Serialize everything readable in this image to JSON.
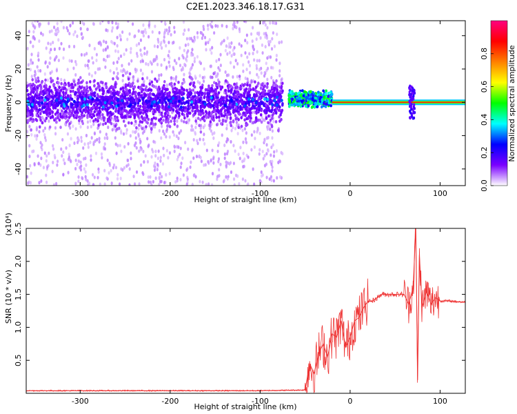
{
  "title": "C2E1.2023.346.18.17.G31",
  "chart_data": [
    {
      "type": "heatmap",
      "xlabel": "Height of straight line (km)",
      "ylabel": "Frequency (Hz)",
      "xlim": [
        -360,
        128
      ],
      "ylim": [
        -50,
        49
      ],
      "xticks": [
        -300,
        -200,
        -100,
        0,
        100
      ],
      "yticks": [
        -40,
        -20,
        0,
        20,
        40
      ],
      "grid": false,
      "colorbar": {
        "label": "Normalized spectral amplitude",
        "range": [
          0,
          1
        ],
        "ticks": [
          0.0,
          0.2,
          0.4,
          0.6,
          0.8
        ],
        "colormap": [
          "#ffffff",
          "#7a00ff",
          "#0000ff",
          "#00ffff",
          "#00ff00",
          "#ffff00",
          "#ff8000",
          "#ff0000",
          "#ff0080"
        ]
      },
      "bands": [
        {
          "x_start": -360,
          "x_end": -75,
          "center_hz": 0,
          "half_width_hz": 10,
          "amplitude": 0.1
        },
        {
          "x_start": -68,
          "x_end": -20,
          "center_hz": 2,
          "half_width_hz": 4,
          "amplitude": 0.4
        },
        {
          "x_start": -20,
          "x_end": 128,
          "center_hz": 0,
          "half_width_hz": 1.2,
          "amplitude": 0.85
        }
      ]
    },
    {
      "type": "line",
      "xlabel": "Height of straight line (km)",
      "ylabel": "SNR (10 * v/v)",
      "y_multiplier": "(x10⁴)",
      "xlim": [
        -360,
        128
      ],
      "ylim": [
        0,
        2.5
      ],
      "xticks": [
        -300,
        -200,
        -100,
        0,
        100
      ],
      "yticks": [
        0.5,
        1.0,
        1.5,
        2.0,
        2.5
      ],
      "grid": false,
      "line_color": "#ee3030",
      "series": [
        {
          "x": [
            -360,
            -300,
            -200,
            -100,
            -50,
            -45,
            -40,
            -35,
            -30,
            -25,
            -20,
            -15,
            -10,
            -5,
            0,
            5,
            10,
            15,
            20,
            25,
            30,
            35,
            40,
            50,
            60,
            65,
            70,
            73,
            75,
            77,
            80,
            85,
            90,
            95,
            100,
            110,
            128
          ],
          "y": [
            0.04,
            0.04,
            0.04,
            0.04,
            0.05,
            0.45,
            0.3,
            0.6,
            0.75,
            0.55,
            0.9,
            0.85,
            1.1,
            0.7,
            0.85,
            1.1,
            1.15,
            1.3,
            1.4,
            1.4,
            1.45,
            1.5,
            1.5,
            1.5,
            1.5,
            1.35,
            1.6,
            2.5,
            0.2,
            2.1,
            1.3,
            1.55,
            1.35,
            1.45,
            1.4,
            1.4,
            1.38
          ]
        }
      ]
    }
  ]
}
